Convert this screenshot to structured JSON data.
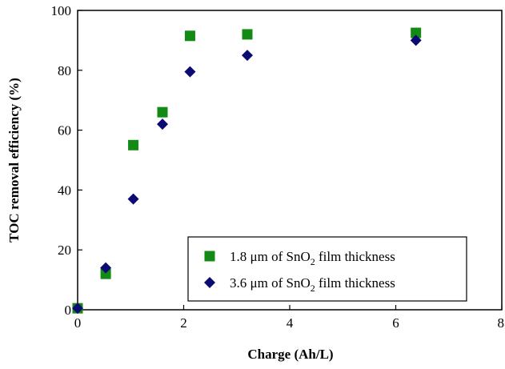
{
  "chart_data": {
    "type": "scatter",
    "title": "",
    "xlabel": "Charge (Ah/L)",
    "ylabel": "TOC removal efficiency (%)",
    "xlim": [
      0,
      8
    ],
    "ylim": [
      0,
      100
    ],
    "xticks": [
      "0",
      "2",
      "4",
      "6",
      "8"
    ],
    "yticks": [
      "0",
      "20",
      "40",
      "60",
      "80",
      "100"
    ],
    "grid": false,
    "legend_position": "bottom-right",
    "series": [
      {
        "name": "1.8 μm of SnO2 film thickness",
        "legend_parts": {
          "before": "1.8 μm of SnO",
          "sub": "2",
          "after": " film thickness"
        },
        "marker": "square",
        "color": "#138a13",
        "x": [
          0,
          0.53,
          1.05,
          1.6,
          2.12,
          3.2,
          6.38
        ],
        "y": [
          0.5,
          12,
          55,
          66,
          91.5,
          92,
          92.5
        ]
      },
      {
        "name": "3.6 μm of SnO2 film thickness",
        "legend_parts": {
          "before": "3.6 μm of SnO",
          "sub": "2",
          "after": " film thickness"
        },
        "marker": "diamond",
        "color": "#0b0b73",
        "x": [
          0,
          0.53,
          1.05,
          1.6,
          2.12,
          3.2,
          6.38
        ],
        "y": [
          0.5,
          14,
          37,
          62,
          79.5,
          85,
          90
        ]
      }
    ]
  }
}
